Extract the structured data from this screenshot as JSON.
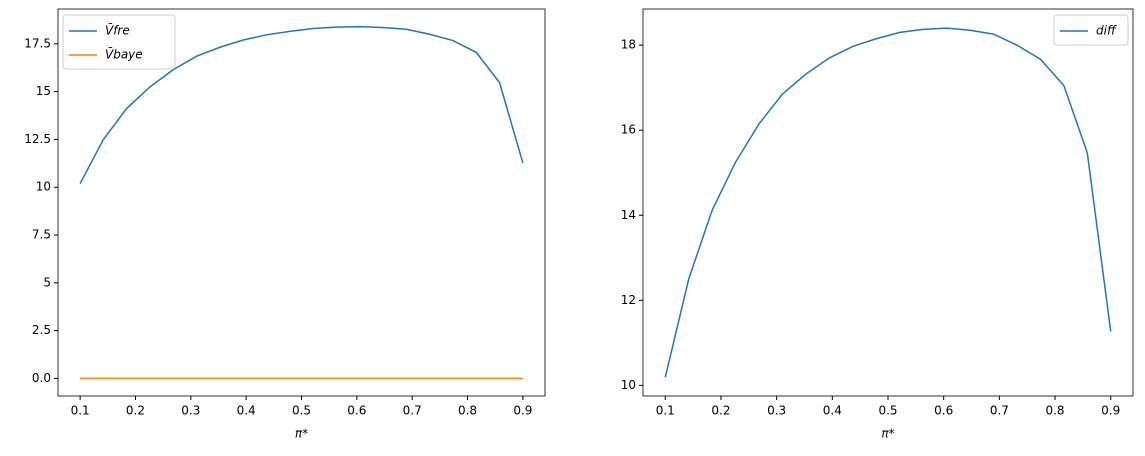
{
  "chart_data": [
    {
      "type": "line",
      "xlabel": "π*",
      "legend": "upper left",
      "x": [
        0.1,
        0.1421,
        0.1842,
        0.2263,
        0.2684,
        0.3105,
        0.3526,
        0.3947,
        0.4368,
        0.4789,
        0.5211,
        0.5632,
        0.6053,
        0.6474,
        0.6895,
        0.7316,
        0.7737,
        0.8158,
        0.8579,
        0.9
      ],
      "series": [
        {
          "name": "V̄fre",
          "color": "#1f77b4",
          "values": [
            10.19,
            12.5,
            14.12,
            15.25,
            16.15,
            16.85,
            17.32,
            17.7,
            17.97,
            18.15,
            18.3,
            18.37,
            18.4,
            18.35,
            18.26,
            18.0,
            17.67,
            17.05,
            15.47,
            11.27
          ]
        },
        {
          "name": "V̄baye",
          "color": "#ff7f0e",
          "values": [
            0,
            0,
            0,
            0,
            0,
            0,
            0,
            0,
            0,
            0,
            0,
            0,
            0,
            0,
            0,
            0,
            0,
            0,
            0,
            0
          ]
        }
      ],
      "xlim": [
        0.06,
        0.94
      ],
      "xticks": [
        0.1,
        0.2,
        0.3,
        0.4,
        0.5,
        0.6,
        0.7,
        0.8,
        0.9
      ],
      "ylim": [
        -0.92,
        19.32
      ],
      "yticks": [
        {
          "value": 0,
          "label": "0.0"
        },
        2.5,
        5,
        7.5,
        10,
        12.5,
        15,
        17.5
      ]
    },
    {
      "type": "line",
      "xlabel": "π*",
      "legend": "upper right",
      "x": [
        0.1,
        0.1421,
        0.1842,
        0.2263,
        0.2684,
        0.3105,
        0.3526,
        0.3947,
        0.4368,
        0.4789,
        0.5211,
        0.5632,
        0.6053,
        0.6474,
        0.6895,
        0.7316,
        0.7737,
        0.8158,
        0.8579,
        0.9
      ],
      "series": [
        {
          "name": "diff",
          "color": "#1f77b4",
          "values": [
            10.19,
            12.5,
            14.12,
            15.25,
            16.15,
            16.85,
            17.32,
            17.7,
            17.97,
            18.15,
            18.3,
            18.37,
            18.4,
            18.35,
            18.26,
            18.0,
            17.67,
            17.05,
            15.47,
            11.27
          ]
        }
      ],
      "xlim": [
        0.06,
        0.94
      ],
      "xticks": [
        0.1,
        0.2,
        0.3,
        0.4,
        0.5,
        0.6,
        0.7,
        0.8,
        0.9
      ],
      "ylim": [
        9.75,
        18.85
      ],
      "yticks": [
        10,
        12,
        14,
        16,
        18
      ]
    }
  ]
}
